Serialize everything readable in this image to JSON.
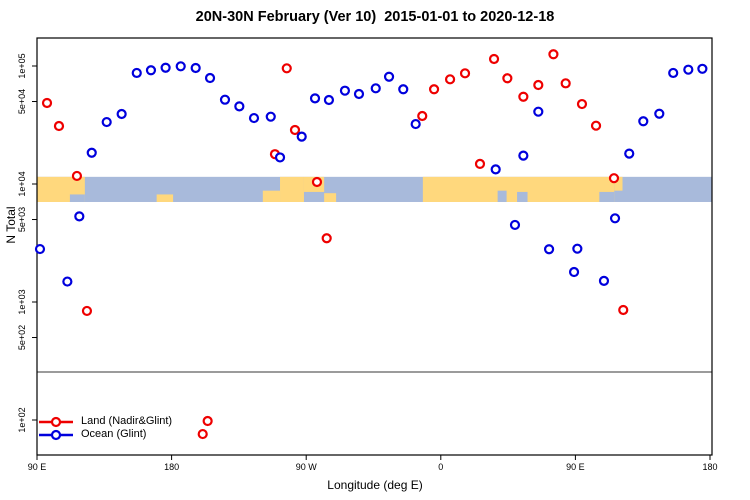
{
  "title": "20N-30N February (Ver 10)  2015-01-01 to 2020-12-18",
  "chart_data": {
    "type": "scatter",
    "title": "20N-30N February (Ver 10)  2015-01-01 to 2020-12-18",
    "xlabel": "Longitude (deg E)",
    "ylabel": "N Total",
    "grid": false,
    "legend_position": "bottom-left",
    "x_axis": {
      "min": 90,
      "max": 540,
      "ticks": [
        {
          "pos": 90,
          "label": "90 E"
        },
        {
          "pos": 180,
          "label": "180"
        },
        {
          "pos": 270,
          "label": "90 W"
        },
        {
          "pos": 360,
          "label": "0"
        },
        {
          "pos": 450,
          "label": "90 E"
        },
        {
          "pos": 540,
          "label": "180"
        }
      ]
    },
    "y_axis": {
      "scale": "log",
      "min": 50,
      "max": 172000,
      "ticks": [
        {
          "value": 100000,
          "label": "1e+05"
        },
        {
          "value": 50000,
          "label": "5e+04"
        },
        {
          "value": 10000,
          "label": "1e+04"
        },
        {
          "value": 5000,
          "label": "5e+03"
        },
        {
          "value": 1000,
          "label": "1e+03"
        },
        {
          "value": 500,
          "label": "5e+02"
        },
        {
          "value": 100,
          "label": "1e+02"
        }
      ]
    },
    "gray_line_n": 255,
    "map_band": {
      "n_top": 11500,
      "n_bottom": 7040,
      "ocean_color": "#a8badb",
      "land_color": "#ffd87d",
      "land_segments": [
        {
          "from": 90,
          "to": 122,
          "v": "full",
          "f": 1
        },
        {
          "from": 170,
          "to": 181,
          "v": "bottom",
          "f": 0.3
        },
        {
          "from": 241,
          "to": 252.5,
          "v": "bottom",
          "f": 0.45
        },
        {
          "from": 252.5,
          "to": 268.5,
          "v": "full",
          "f": 1
        },
        {
          "from": 268.5,
          "to": 282,
          "v": "top",
          "f": 0.6
        },
        {
          "from": 282,
          "to": 290,
          "v": "bottom",
          "f": 0.35
        },
        {
          "from": 348,
          "to": 476,
          "v": "full",
          "f": 1
        },
        {
          "from": 476,
          "to": 481.5,
          "v": "top",
          "f": 0.55
        }
      ],
      "water_notches": [
        {
          "from": 112,
          "to": 122,
          "f": 0.3
        },
        {
          "from": 398,
          "to": 404,
          "f": 0.45
        },
        {
          "from": 411,
          "to": 418,
          "f": 0.4
        },
        {
          "from": 466,
          "to": 476,
          "f": 0.4
        }
      ]
    },
    "series": [
      {
        "name": "Land (Nadir&Glint)",
        "color": "#ee0000",
        "points": [
          [
            96.7,
            48600
          ],
          [
            104.7,
            31000
          ],
          [
            116.7,
            11700
          ],
          [
            123.4,
            840
          ],
          [
            200.8,
            76
          ],
          [
            204.1,
            98
          ],
          [
            249.1,
            17900
          ],
          [
            257.0,
            95600
          ],
          [
            262.5,
            28700
          ],
          [
            277.2,
            10400
          ],
          [
            283.7,
            3470
          ],
          [
            347.6,
            37700
          ],
          [
            355.5,
            63500
          ],
          [
            366.2,
            77100
          ],
          [
            376.2,
            86700
          ],
          [
            386.2,
            14800
          ],
          [
            395.6,
            114700
          ],
          [
            404.5,
            78700
          ],
          [
            415.2,
            54900
          ],
          [
            425.2,
            69000
          ],
          [
            435.3,
            125700
          ],
          [
            443.5,
            71300
          ],
          [
            454.4,
            47600
          ],
          [
            463.8,
            31200
          ],
          [
            475.8,
            11200
          ],
          [
            482.0,
            856
          ]
        ]
      },
      {
        "name": "Ocean (Glint)",
        "color": "#0000dd",
        "points": [
          [
            92.0,
            2810
          ],
          [
            110.3,
            1490
          ],
          [
            118.3,
            5320
          ],
          [
            126.6,
            18400
          ],
          [
            136.6,
            33500
          ],
          [
            146.6,
            39200
          ],
          [
            156.7,
            87300
          ],
          [
            166.2,
            92000
          ],
          [
            176.0,
            96700
          ],
          [
            186.1,
            99400
          ],
          [
            196.1,
            96200
          ],
          [
            205.7,
            79100
          ],
          [
            215.7,
            51800
          ],
          [
            225.3,
            45500
          ],
          [
            235.1,
            36200
          ],
          [
            246.3,
            37200
          ],
          [
            252.5,
            16800
          ],
          [
            267.0,
            25200
          ],
          [
            275.9,
            53200
          ],
          [
            285.2,
            51500
          ],
          [
            295.9,
            61800
          ],
          [
            305.3,
            57900
          ],
          [
            316.5,
            64700
          ],
          [
            325.4,
            81100
          ],
          [
            334.9,
            63500
          ],
          [
            343.2,
            32200
          ],
          [
            396.7,
            13300
          ],
          [
            409.6,
            4500
          ],
          [
            415.2,
            17400
          ],
          [
            425.2,
            41000
          ],
          [
            432.4,
            2800
          ],
          [
            449.1,
            1795
          ],
          [
            451.3,
            2830
          ],
          [
            469.1,
            1510
          ],
          [
            476.5,
            5120
          ],
          [
            486.0,
            18100
          ],
          [
            495.4,
            34000
          ],
          [
            506.1,
            39400
          ],
          [
            515.4,
            87300
          ],
          [
            525.5,
            93100
          ],
          [
            534.9,
            94700
          ]
        ]
      }
    ],
    "legend": {
      "items": [
        {
          "label": "Land (Nadir&Glint)",
          "color": "#ee0000"
        },
        {
          "label": "Ocean (Glint)",
          "color": "#0000dd"
        }
      ]
    }
  }
}
